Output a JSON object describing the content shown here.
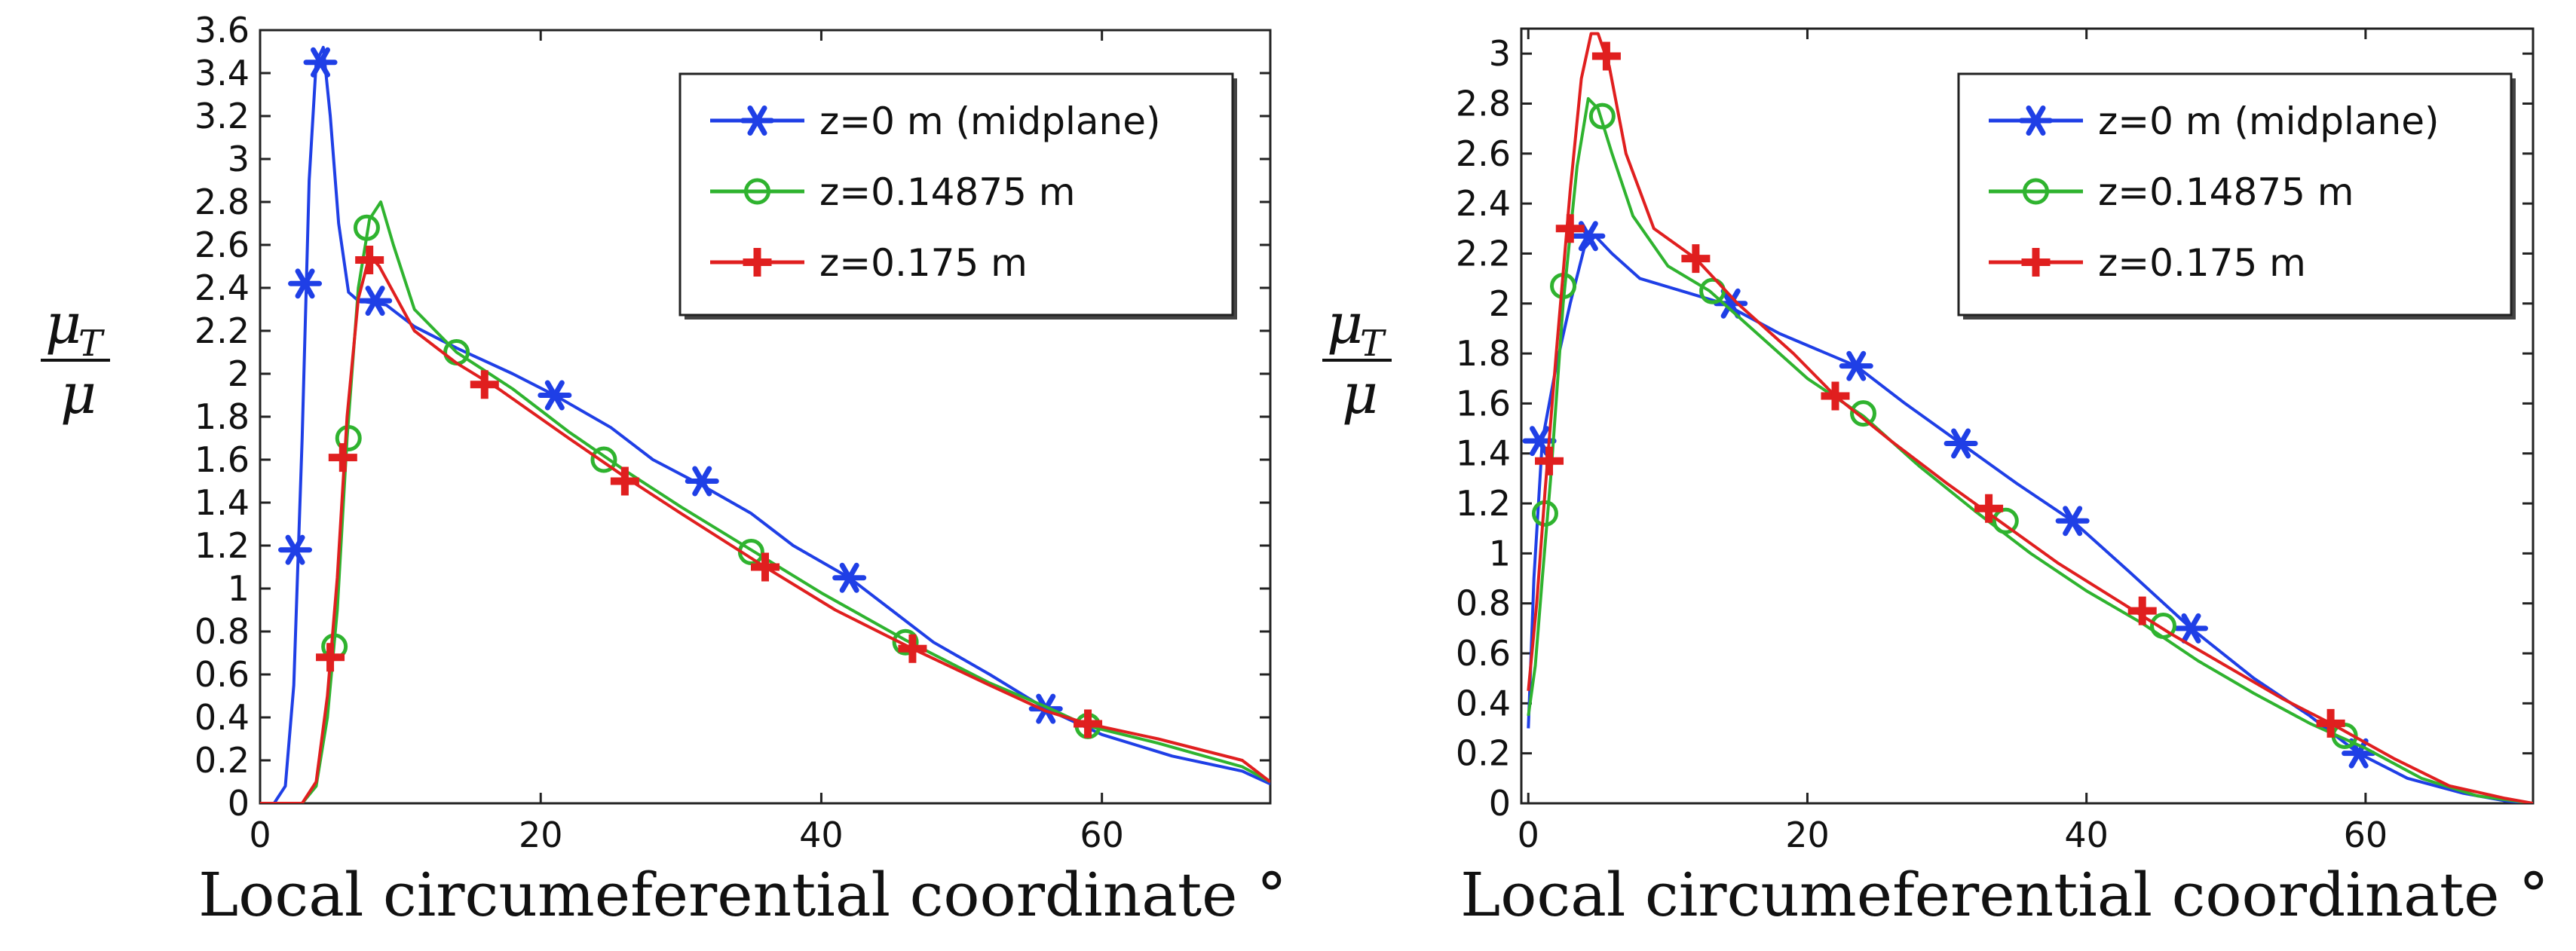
{
  "chart_data": [
    {
      "type": "line",
      "panel": "left",
      "title": "",
      "xlabel": "Local circumeferential coordinate °",
      "ylabel": "μT/μ",
      "ylabel_num": "μ",
      "ylabel_sub": "T",
      "ylabel_den": "μ",
      "xlim": [
        0,
        72
      ],
      "ylim": [
        0,
        3.6
      ],
      "xticks": [
        0,
        20,
        40,
        60
      ],
      "yticks": [
        0,
        0.2,
        0.4,
        0.6,
        0.8,
        1,
        1.2,
        1.4,
        1.6,
        1.8,
        2,
        2.2,
        2.4,
        2.6,
        2.8,
        3,
        3.2,
        3.4,
        3.6
      ],
      "legend_position": "top-right",
      "series": [
        {
          "name": "z=0 m (midplane)",
          "color": "#1f3fe6",
          "marker": "asterisk",
          "x": [
            0,
            1,
            1.8,
            2.4,
            3,
            3.5,
            4,
            4.5,
            5,
            5.6,
            6.3,
            7,
            8,
            9,
            11,
            14,
            18,
            21,
            25,
            28,
            31.5,
            35,
            38,
            42,
            45,
            48,
            52,
            56,
            60,
            65,
            70,
            72
          ],
          "y": [
            0,
            0,
            0.08,
            0.55,
            1.7,
            2.9,
            3.45,
            3.52,
            3.2,
            2.7,
            2.38,
            2.34,
            2.33,
            2.32,
            2.22,
            2.12,
            2.0,
            1.9,
            1.75,
            1.6,
            1.48,
            1.35,
            1.2,
            1.05,
            0.9,
            0.75,
            0.6,
            0.44,
            0.32,
            0.22,
            0.15,
            0.09
          ],
          "marker_x": [
            2.5,
            3.2,
            4.3,
            8.2,
            21,
            31.5,
            42,
            56
          ],
          "marker_y": [
            1.18,
            2.42,
            3.45,
            2.34,
            1.9,
            1.5,
            1.05,
            0.44
          ]
        },
        {
          "name": "z=0.14875 m",
          "color": "#2fb32f",
          "marker": "circle",
          "x": [
            0,
            3,
            4,
            4.8,
            5.5,
            6.2,
            7,
            7.8,
            8.6,
            9.5,
            11,
            14,
            18,
            22,
            26,
            30,
            35,
            40,
            46,
            52,
            56,
            59,
            64,
            70,
            72
          ],
          "y": [
            0,
            0,
            0.08,
            0.4,
            0.9,
            1.7,
            2.4,
            2.72,
            2.8,
            2.6,
            2.3,
            2.1,
            1.93,
            1.73,
            1.55,
            1.38,
            1.18,
            0.98,
            0.76,
            0.56,
            0.45,
            0.36,
            0.28,
            0.17,
            0.1
          ],
          "marker_x": [
            5.3,
            6.3,
            7.6,
            14,
            24.5,
            35,
            46,
            59
          ],
          "marker_y": [
            0.73,
            1.7,
            2.68,
            2.1,
            1.6,
            1.17,
            0.75,
            0.36
          ]
        },
        {
          "name": "z=0.175 m",
          "color": "#e01f1f",
          "marker": "plus",
          "x": [
            0,
            3,
            4,
            4.8,
            5.5,
            6.2,
            7,
            7.8,
            8.5,
            9.5,
            11,
            14,
            17,
            22,
            26,
            30,
            36,
            41,
            46.5,
            52,
            56,
            59,
            64,
            70,
            72
          ],
          "y": [
            0,
            0,
            0.1,
            0.5,
            1.05,
            1.8,
            2.35,
            2.55,
            2.5,
            2.38,
            2.2,
            2.05,
            1.93,
            1.7,
            1.52,
            1.35,
            1.1,
            0.9,
            0.72,
            0.55,
            0.43,
            0.37,
            0.3,
            0.2,
            0.1
          ],
          "marker_x": [
            5,
            5.9,
            7.8,
            16,
            26,
            36,
            46.5,
            59
          ],
          "marker_y": [
            0.68,
            1.61,
            2.53,
            1.95,
            1.5,
            1.1,
            0.72,
            0.37
          ]
        }
      ]
    },
    {
      "type": "line",
      "panel": "right",
      "title": "",
      "xlabel": "Local circumeferential coordinate °",
      "ylabel": "μT/μ",
      "ylabel_num": "μ",
      "ylabel_sub": "T",
      "ylabel_den": "μ",
      "xlim": [
        -0.5,
        72
      ],
      "ylim": [
        0,
        3.1
      ],
      "xticks": [
        0,
        20,
        40,
        60
      ],
      "yticks": [
        0,
        0.2,
        0.4,
        0.6,
        0.8,
        1,
        1.2,
        1.4,
        1.6,
        1.8,
        2,
        2.2,
        2.4,
        2.6,
        2.8,
        3
      ],
      "legend_position": "top-right",
      "series": [
        {
          "name": "z=0 m (midplane)",
          "color": "#1f3fe6",
          "marker": "asterisk",
          "x": [
            0,
            0.4,
            1,
            2,
            3,
            4,
            4.8,
            6,
            8,
            11,
            14,
            18,
            23.5,
            27,
            31,
            35,
            39,
            43,
            47.5,
            52,
            56,
            59.5,
            63,
            67,
            70,
            72
          ],
          "y": [
            0.3,
            0.9,
            1.45,
            1.75,
            2.0,
            2.22,
            2.27,
            2.2,
            2.1,
            2.05,
            2.0,
            1.88,
            1.75,
            1.6,
            1.44,
            1.28,
            1.13,
            0.93,
            0.7,
            0.5,
            0.35,
            0.2,
            0.1,
            0.04,
            0.01,
            0
          ],
          "marker_x": [
            0.8,
            4.3,
            14.5,
            23.5,
            31,
            39,
            47.5,
            59.5
          ],
          "marker_y": [
            1.45,
            2.27,
            2.0,
            1.75,
            1.44,
            1.13,
            0.7,
            0.2
          ]
        },
        {
          "name": "z=0.14875 m",
          "color": "#2fb32f",
          "marker": "circle",
          "x": [
            0,
            0.5,
            1,
            1.6,
            2.5,
            3.5,
            4.3,
            5,
            6,
            7.5,
            10,
            13,
            16,
            20,
            24,
            28,
            32,
            36,
            40,
            44,
            48,
            52,
            56,
            60,
            64,
            68,
            72
          ],
          "y": [
            0.35,
            0.55,
            0.9,
            1.3,
            2.0,
            2.55,
            2.82,
            2.78,
            2.6,
            2.35,
            2.15,
            2.05,
            1.9,
            1.7,
            1.55,
            1.35,
            1.17,
            1.0,
            0.85,
            0.72,
            0.57,
            0.44,
            0.32,
            0.22,
            0.1,
            0.03,
            0
          ],
          "marker_x": [
            1.2,
            2.5,
            5.3,
            13.2,
            24,
            34.2,
            45.5,
            58.5
          ],
          "marker_y": [
            1.16,
            2.07,
            2.75,
            2.05,
            1.56,
            1.13,
            0.71,
            0.27
          ]
        },
        {
          "name": "z=0.175 m",
          "color": "#e01f1f",
          "marker": "plus",
          "x": [
            0,
            0.6,
            1.2,
            2,
            3,
            3.8,
            4.5,
            5,
            5.8,
            7,
            9,
            12,
            15,
            19,
            22,
            26,
            30,
            34,
            38,
            42,
            46,
            50,
            54,
            57.5,
            62,
            66,
            70,
            72
          ],
          "y": [
            0.45,
            0.8,
            1.25,
            1.8,
            2.45,
            2.9,
            3.08,
            3.08,
            2.95,
            2.6,
            2.3,
            2.18,
            2.0,
            1.8,
            1.63,
            1.45,
            1.28,
            1.12,
            0.96,
            0.82,
            0.68,
            0.55,
            0.42,
            0.32,
            0.18,
            0.07,
            0.02,
            0
          ],
          "marker_x": [
            1.5,
            3,
            5.6,
            12,
            22,
            33,
            44,
            57.5
          ],
          "marker_y": [
            1.37,
            2.3,
            2.99,
            2.18,
            1.63,
            1.18,
            0.77,
            0.32
          ]
        }
      ]
    }
  ]
}
